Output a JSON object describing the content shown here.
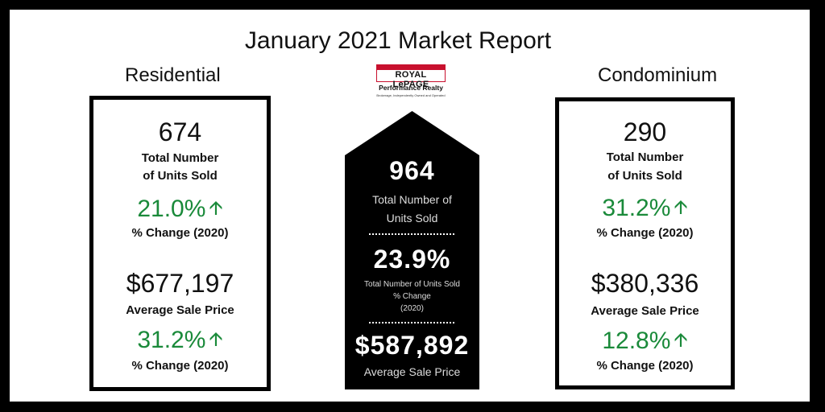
{
  "title": "January 2021 Market Report",
  "logo": {
    "brand": "ROYAL LePAGE",
    "sub": "Performance Realty",
    "tagline": "Brokerage, Independently Owned and Operated"
  },
  "residential": {
    "label": "Residential",
    "units_sold": "674",
    "units_label_1": "Total Number",
    "units_label_2": "of Units Sold",
    "units_change": "21.0%",
    "change_label_1": "% Change (2020)",
    "avg_price": "$677,197",
    "avg_price_label": "Average Sale Price",
    "price_change": "31.2%",
    "change_label_2": "% Change (2020)"
  },
  "condominium": {
    "label": "Condominium",
    "units_sold": "290",
    "units_label_1": "Total Number",
    "units_label_2": "of Units Sold",
    "units_change": "31.2%",
    "change_label_1": "% Change (2020)",
    "avg_price": "$380,336",
    "avg_price_label": "Average Sale Price",
    "price_change": "12.8%",
    "change_label_2": "% Change (2020)"
  },
  "total": {
    "units_sold": "964",
    "units_label_1": "Total Number of",
    "units_label_2": "Units Sold",
    "units_change": "23.9%",
    "change_label_1": "Total Number of Units Sold",
    "change_label_2": "% Change",
    "change_label_3": "(2020)",
    "avg_price": "$587,892",
    "avg_price_label": "Average Sale Price"
  },
  "icons": {
    "trend": "up-arrow-icon"
  },
  "colors": {
    "positive": "#1a8a3a",
    "logo_red": "#c8102e"
  }
}
